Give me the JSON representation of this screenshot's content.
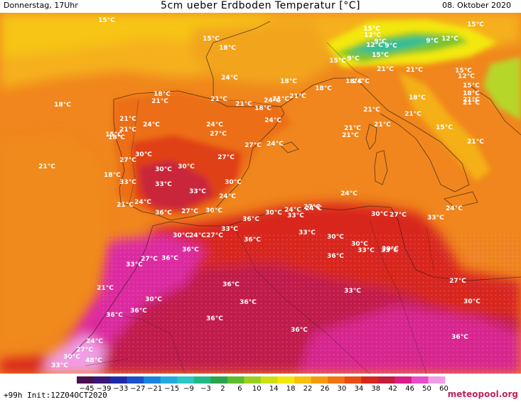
{
  "header": {
    "left": "Donnerstag, 17Uhr",
    "title": "5cm ueber Erdboden Temperatur [°C]",
    "right": "08. Oktober 2020"
  },
  "footer": {
    "left": "+99h  Init:12Z04OCT2020",
    "brand": "meteopool.org"
  },
  "scale": {
    "ticks": [
      "-45",
      "-39",
      "-33",
      "-27",
      "-21",
      "-15",
      "-9",
      "-3",
      "2",
      "6",
      "10",
      "14",
      "18",
      "22",
      "26",
      "30",
      "34",
      "38",
      "42",
      "46",
      "50",
      "60"
    ],
    "colors": [
      "#4b0f4d",
      "#3a1676",
      "#1f2aa6",
      "#1c52c8",
      "#1a84dc",
      "#22aadd",
      "#2bc7c7",
      "#22b884",
      "#2aa44a",
      "#5cbc2c",
      "#9bd021",
      "#cfe012",
      "#f3e80a",
      "#f8c20a",
      "#f59a0c",
      "#f07210",
      "#e84c13",
      "#d7261a",
      "#c21d3b",
      "#d81d86",
      "#e64cc4",
      "#f19de4"
    ]
  },
  "temperature_labels": [
    {
      "t": "15°C"
    },
    {
      "t": "15°C"
    },
    {
      "t": "18°C"
    },
    {
      "t": "24°C"
    },
    {
      "t": "18°C"
    },
    {
      "t": "18°C"
    },
    {
      "t": "21°C"
    },
    {
      "t": "21°C"
    },
    {
      "t": "18°C"
    },
    {
      "t": "21°C"
    },
    {
      "t": "21°C"
    },
    {
      "t": "24°C"
    },
    {
      "t": "24°C"
    },
    {
      "t": "27°C"
    },
    {
      "t": "21°C"
    },
    {
      "t": "18°C"
    },
    {
      "t": "24°C"
    },
    {
      "t": "27°C"
    },
    {
      "t": "21°C"
    },
    {
      "t": "30°C"
    },
    {
      "t": "27°C"
    },
    {
      "t": "27°C"
    },
    {
      "t": "30°C"
    },
    {
      "t": "30°C"
    },
    {
      "t": "18°C"
    },
    {
      "t": "33°C"
    },
    {
      "t": "33°C"
    },
    {
      "t": "33°C"
    },
    {
      "t": "24°C"
    },
    {
      "t": "21°C"
    },
    {
      "t": "24°C"
    },
    {
      "t": "30°C"
    },
    {
      "t": "36°C"
    },
    {
      "t": "27°C"
    },
    {
      "t": "30°C"
    },
    {
      "t": "36°C"
    },
    {
      "t": "30°C"
    },
    {
      "t": "24°C"
    },
    {
      "t": "27°C"
    },
    {
      "t": "33°C"
    },
    {
      "t": "33°C"
    },
    {
      "t": "30°C"
    },
    {
      "t": "24°C"
    },
    {
      "t": "27°C"
    },
    {
      "t": "33°C"
    },
    {
      "t": "36°C"
    },
    {
      "t": "36°C"
    },
    {
      "t": "27°C"
    },
    {
      "t": "33°C"
    },
    {
      "t": "36°C"
    },
    {
      "t": "33°C"
    },
    {
      "t": "30°C"
    },
    {
      "t": "30°C"
    },
    {
      "t": "36°C"
    },
    {
      "t": "33°C"
    },
    {
      "t": "30°C"
    },
    {
      "t": "30°C"
    },
    {
      "t": "27°C"
    },
    {
      "t": "30°C"
    },
    {
      "t": "21°C"
    },
    {
      "t": "36°C"
    },
    {
      "t": "36°C"
    },
    {
      "t": "33°C"
    },
    {
      "t": "30°C"
    },
    {
      "t": "36°C"
    },
    {
      "t": "36°C"
    },
    {
      "t": "36°C"
    },
    {
      "t": "36°C"
    },
    {
      "t": "36°C"
    },
    {
      "t": "24°C"
    },
    {
      "t": "27°C"
    },
    {
      "t": "30°C"
    },
    {
      "t": "48°C"
    },
    {
      "t": "33°C"
    },
    {
      "t": "21°C"
    },
    {
      "t": "24°C"
    },
    {
      "t": "24°C"
    },
    {
      "t": "24°C"
    },
    {
      "t": "27°C"
    },
    {
      "t": "33°C"
    },
    {
      "t": "15°C"
    },
    {
      "t": "12°C"
    },
    {
      "t": "9°C"
    },
    {
      "t": "15°C"
    },
    {
      "t": "9°C"
    },
    {
      "t": "12°C"
    },
    {
      "t": "15°C"
    },
    {
      "t": "9°C"
    },
    {
      "t": "9°C"
    },
    {
      "t": "12°C"
    },
    {
      "t": "15°C"
    },
    {
      "t": "21°C"
    },
    {
      "t": "18°C"
    },
    {
      "t": "21°C"
    },
    {
      "t": "18°C"
    },
    {
      "t": "21°C"
    },
    {
      "t": "15°C"
    },
    {
      "t": "12°C"
    },
    {
      "t": "15°C"
    },
    {
      "t": "18°C"
    },
    {
      "t": "21°C"
    },
    {
      "t": "21°C"
    },
    {
      "t": "15°C"
    },
    {
      "t": "21°C"
    },
    {
      "t": "21°C"
    },
    {
      "t": "21°C"
    },
    {
      "t": "24°C"
    },
    {
      "t": "24°C"
    },
    {
      "t": "21°C"
    },
    {
      "t": "21°C"
    },
    {
      "t": "18°C"
    },
    {
      "t": "24°C"
    },
    {
      "t": "21°C"
    },
    {
      "t": "18°C"
    },
    {
      "t": "15°C"
    }
  ]
}
